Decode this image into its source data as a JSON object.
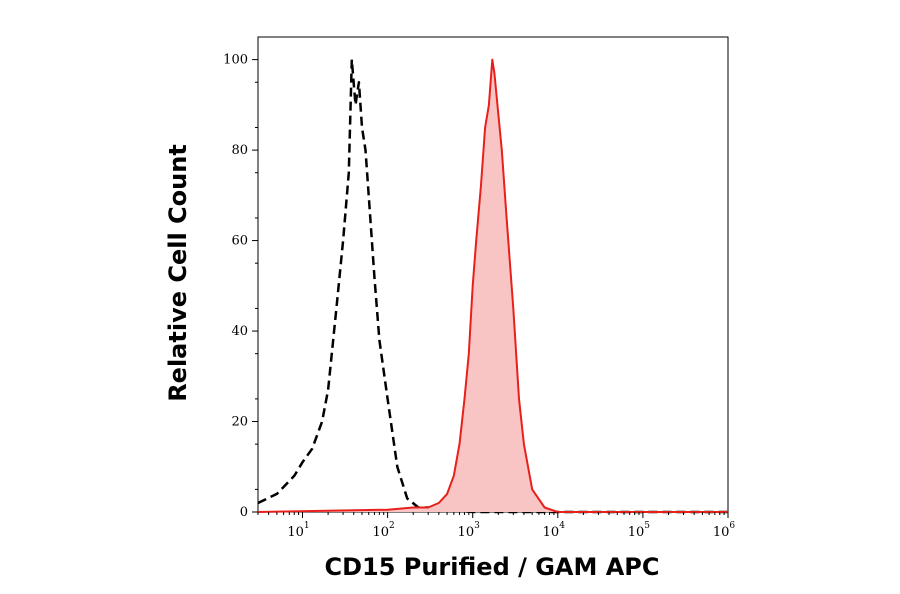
{
  "chart_data": {
    "type": "area",
    "title": "",
    "xlabel": "CD15 Purified / GAM APC",
    "ylabel": "Relative Cell Count",
    "x_scale": "log",
    "xlim": [
      3,
      1000000
    ],
    "ylim": [
      0,
      105
    ],
    "grid": false,
    "y_ticks": [
      {
        "value": 0,
        "label": "0"
      },
      {
        "value": 20,
        "label": "20"
      },
      {
        "value": 40,
        "label": "40"
      },
      {
        "value": 60,
        "label": "60"
      },
      {
        "value": 80,
        "label": "80"
      },
      {
        "value": 100,
        "label": "100"
      }
    ],
    "x_ticks": [
      {
        "value": 10,
        "base": "10",
        "exp": "1"
      },
      {
        "value": 100,
        "base": "10",
        "exp": "2"
      },
      {
        "value": 1000,
        "base": "10",
        "exp": "3"
      },
      {
        "value": 10000,
        "base": "10",
        "exp": "4"
      },
      {
        "value": 100000,
        "base": "10",
        "exp": "5"
      },
      {
        "value": 1000000,
        "base": "10",
        "exp": "6"
      }
    ],
    "series": [
      {
        "style": "dashed",
        "color": "#000000",
        "fill": "none",
        "x": [
          3,
          5,
          8,
          10,
          13,
          17,
          20,
          25,
          30,
          35,
          38,
          42,
          46,
          50,
          55,
          60,
          70,
          80,
          100,
          130,
          170,
          230,
          300,
          400,
          600,
          1000,
          3000,
          1000000
        ],
        "y": [
          2,
          4,
          8,
          11,
          14,
          20,
          27,
          45,
          60,
          75,
          100,
          90,
          95,
          85,
          80,
          70,
          52,
          38,
          25,
          10,
          3,
          1,
          1,
          0.5,
          0.3,
          0,
          0,
          0
        ]
      },
      {
        "style": "solid",
        "color": "#e8201c",
        "fill": "#f9c4c4",
        "x": [
          3,
          100,
          200,
          300,
          400,
          500,
          600,
          700,
          800,
          900,
          1000,
          1100,
          1250,
          1400,
          1550,
          1700,
          1800,
          2000,
          2200,
          2500,
          3000,
          3500,
          4000,
          5000,
          7000,
          10000,
          100000,
          1000000
        ],
        "y": [
          0,
          0.5,
          1,
          1,
          2,
          4,
          8,
          15,
          25,
          35,
          50,
          60,
          72,
          85,
          90,
          100,
          97,
          88,
          80,
          65,
          45,
          25,
          15,
          5,
          1,
          0,
          0,
          0
        ]
      }
    ]
  }
}
